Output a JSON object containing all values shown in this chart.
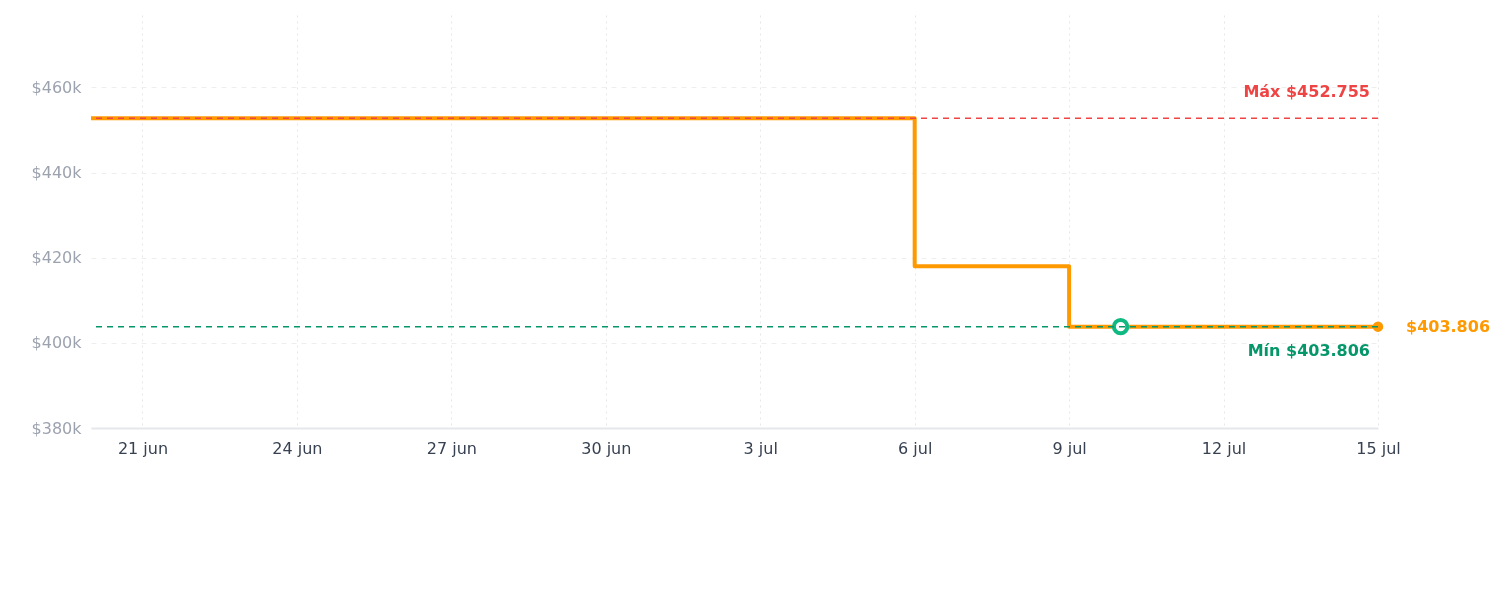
{
  "chart_data": {
    "type": "step",
    "x": [
      "--06-20",
      "--07-06",
      "--07-09",
      "--07-15"
    ],
    "series": [
      {
        "color": "#ff9900",
        "values": [
          452755,
          418000,
          403806,
          403806
        ],
        "value_labels": [
          null,
          null,
          null,
          "$403.806"
        ]
      },
      {
        "type": "scatter",
        "color": "#10b981",
        "x": [
          "--07-10"
        ],
        "values": [
          403806
        ],
        "marker": "circle"
      }
    ],
    "xlim": [
      "--06-20",
      "--07-15"
    ],
    "xticks": [
      {
        "value": "--06-21",
        "label": "21 jun"
      },
      {
        "value": "--06-24",
        "label": "24 jun"
      },
      {
        "value": "--06-27",
        "label": "27 jun"
      },
      {
        "value": "--06-30",
        "label": "30 jun"
      },
      {
        "value": "--07-03",
        "label": "3 jul"
      },
      {
        "value": "--07-06",
        "label": "6 jul"
      },
      {
        "value": "--07-09",
        "label": "9 jul"
      },
      {
        "value": "--07-12",
        "label": "12 jul"
      },
      {
        "value": "--07-15",
        "label": "15 jul"
      }
    ],
    "ylim": [
      380000,
      477000
    ],
    "yticks": [
      {
        "value": 380000,
        "label": "$380k"
      },
      {
        "value": 400000,
        "label": "$400k"
      },
      {
        "value": 420000,
        "label": "$420k"
      },
      {
        "value": 440000,
        "label": "$440k"
      },
      {
        "value": 460000,
        "label": "$460k"
      }
    ],
    "ref_lines": [
      {
        "axis": "y",
        "value": 452755,
        "label": "Máx $452.755",
        "color": "#ef4444",
        "line_style": "dashed"
      },
      {
        "axis": "y",
        "value": 403806,
        "label": "Mín $403.806",
        "color": "#059669",
        "line_style": "dashed"
      }
    ],
    "grid": true
  }
}
